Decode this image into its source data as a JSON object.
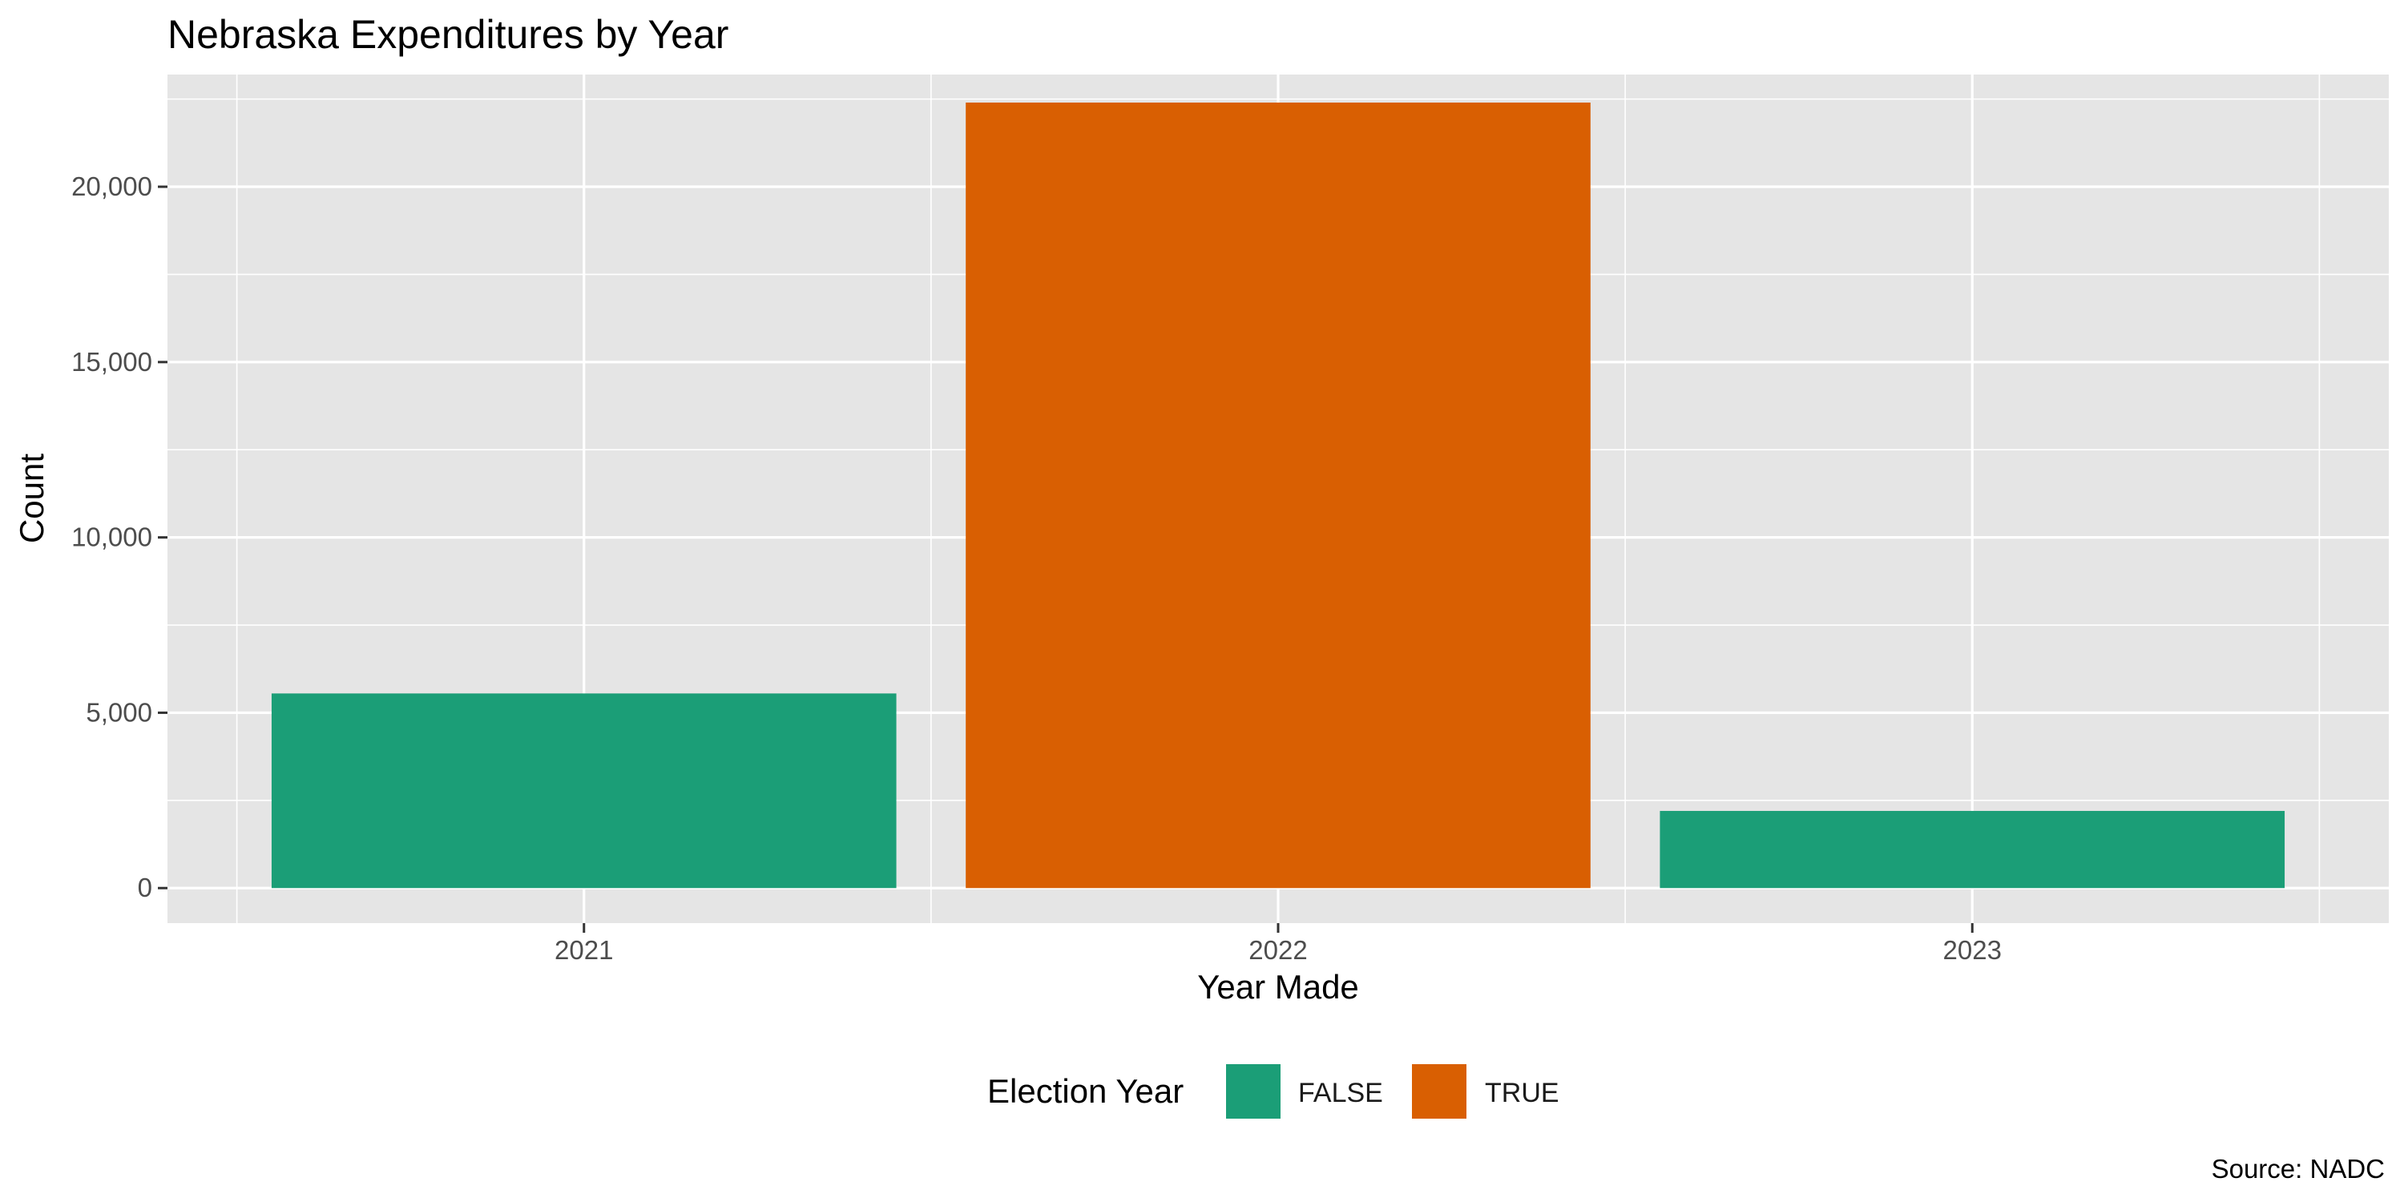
{
  "chart_data": {
    "type": "bar",
    "title": "Nebraska Expenditures by Year",
    "xlabel": "Year Made",
    "ylabel": "Count",
    "categories": [
      "2021",
      "2022",
      "2023"
    ],
    "values": [
      5550,
      22400,
      2200
    ],
    "election_year": [
      "FALSE",
      "TRUE",
      "FALSE"
    ],
    "ylim": [
      -1000,
      23200
    ],
    "yticks": [
      0,
      5000,
      10000,
      15000,
      20000
    ],
    "ytick_labels": [
      "0",
      "5,000",
      "10,000",
      "15,000",
      "20,000"
    ],
    "grid": true,
    "legend": {
      "title": "Election Year",
      "placement": "bottom",
      "entries": [
        {
          "label": "FALSE",
          "color": "#1b9e77"
        },
        {
          "label": "TRUE",
          "color": "#d95f02"
        }
      ]
    },
    "caption": "Source: NADC"
  },
  "colors": {
    "FALSE": "#1b9e77",
    "TRUE": "#d95f02",
    "panel": "#e5e5e5",
    "grid": "#ffffff"
  }
}
